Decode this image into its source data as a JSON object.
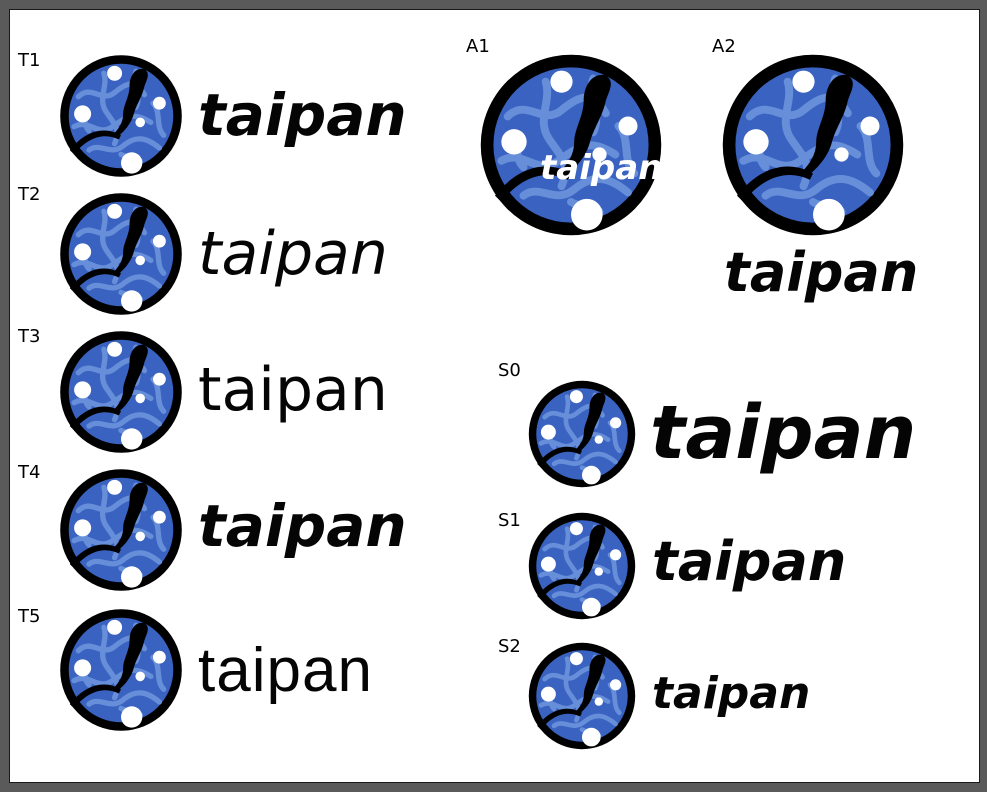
{
  "variants": [
    {
      "id": "T1",
      "wordmark": "taipan"
    },
    {
      "id": "T2",
      "wordmark": "taipan"
    },
    {
      "id": "T3",
      "wordmark": "taipan"
    },
    {
      "id": "T4",
      "wordmark": "taipan"
    },
    {
      "id": "T5",
      "wordmark": "taipan"
    },
    {
      "id": "A1",
      "wordmark": "taipan"
    },
    {
      "id": "A2",
      "wordmark": "taipan"
    },
    {
      "id": "S0",
      "wordmark": "taipan"
    },
    {
      "id": "S1",
      "wordmark": "taipan"
    },
    {
      "id": "S2",
      "wordmark": "taipan"
    }
  ],
  "colors": {
    "disc_blue": "#3a62c0",
    "disc_pattern": "#6f97de",
    "ring": "#000000",
    "dots": "#ffffff",
    "wordmark": "#050505",
    "page_background": "#ffffff",
    "frame": "#5a5a5a"
  },
  "icons": {
    "logo": "taipan-snake-disc-logo"
  }
}
